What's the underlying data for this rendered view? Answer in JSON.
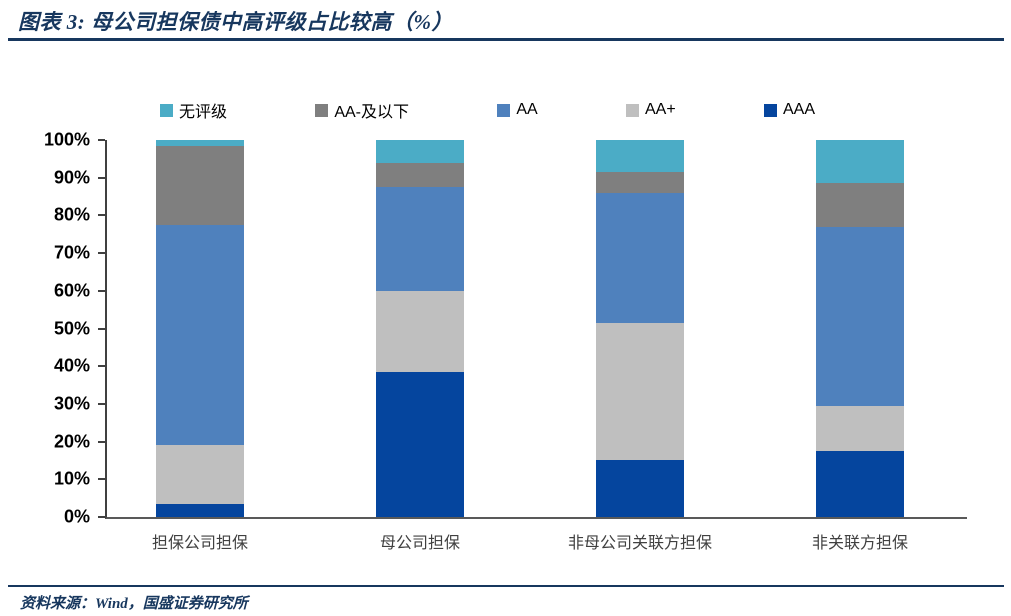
{
  "header": {
    "title": "图表 3:  母公司担保债中高评级占比较高（%）"
  },
  "footer": {
    "source": "资料来源：Wind，国盛证券研究所"
  },
  "colors": {
    "accent_navy": "#17375E",
    "axis_line": "#595959",
    "tick_label": "#000000",
    "x_label": "#404040"
  },
  "chart_data": {
    "type": "bar",
    "stacked": true,
    "stacked_total": 100,
    "title": "母公司担保债中高评级占比较高（%）",
    "xlabel": "",
    "ylabel": "",
    "ylim": [
      0,
      100
    ],
    "grid": false,
    "legend_position": "top",
    "yticks": [
      "0%",
      "10%",
      "20%",
      "30%",
      "40%",
      "50%",
      "60%",
      "70%",
      "80%",
      "90%",
      "100%"
    ],
    "categories": [
      "担保公司担保",
      "母公司担保",
      "非母公司关联方担保",
      "非关联方担保"
    ],
    "series": [
      {
        "name": "AAA",
        "color": "#05459E",
        "values": [
          3.5,
          38.5,
          15.0,
          17.5
        ]
      },
      {
        "name": "AA+",
        "color": "#BFBFBF",
        "values": [
          15.5,
          21.5,
          36.5,
          12.0
        ]
      },
      {
        "name": "AA",
        "color": "#4F81BD",
        "values": [
          58.5,
          27.5,
          34.5,
          47.5
        ]
      },
      {
        "name": "AA-及以下",
        "color": "#7F7F7F",
        "values": [
          21.0,
          6.5,
          5.5,
          11.5
        ]
      },
      {
        "name": "无评级",
        "color": "#4BACC6",
        "values": [
          1.5,
          6.0,
          8.5,
          11.5
        ]
      }
    ],
    "legend": [
      {
        "key": "wupingji",
        "label": "无评级",
        "color": "#4BACC6"
      },
      {
        "key": "aa-minus",
        "label": "AA-及以下",
        "color": "#7F7F7F"
      },
      {
        "key": "aa",
        "label": "AA",
        "color": "#4F81BD"
      },
      {
        "key": "aa-plus",
        "label": "AA+",
        "color": "#BFBFBF"
      },
      {
        "key": "aaa",
        "label": "AAA",
        "color": "#05459E"
      }
    ]
  }
}
